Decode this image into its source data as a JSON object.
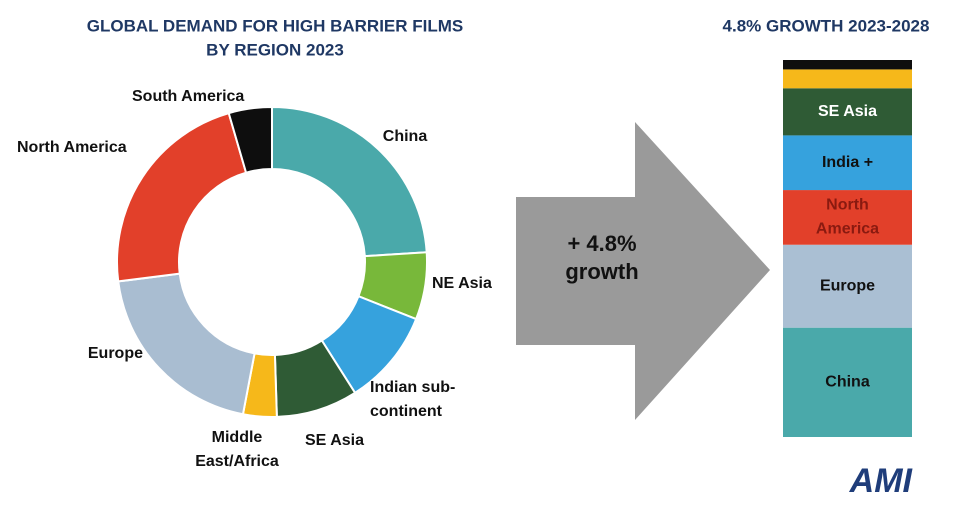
{
  "chart_data": [
    {
      "type": "pie",
      "hole": true,
      "title": [
        "GLOBAL DEMAND FOR HIGH BARRIER FILMS",
        "BY REGION 2023"
      ],
      "categories": [
        [
          "China"
        ],
        [
          "NE Asia"
        ],
        [
          "Indian sub-",
          "continent"
        ],
        [
          "SE Asia"
        ],
        [
          "Middle",
          "East/Africa"
        ],
        [
          "Europe"
        ],
        [
          "North America"
        ],
        [
          "South America"
        ]
      ],
      "values": [
        24,
        7,
        10,
        8.5,
        3.5,
        20,
        22.5,
        4.5
      ],
      "colors": [
        "#4aa9aa",
        "#78b83a",
        "#36a2dd",
        "#2f5b35",
        "#f6b81a",
        "#a9bdd1",
        "#e2402a",
        "#0e0e0e"
      ]
    },
    {
      "type": "stacked_bar",
      "title": [
        "4.8% GROWTH 2023-2028"
      ],
      "series": [
        {
          "name": [
            "China"
          ],
          "color": "#4aa9aa",
          "values": [
            29
          ]
        },
        {
          "name": [
            "Europe"
          ],
          "color": "#aabfd3",
          "values": [
            22
          ]
        },
        {
          "name": [
            "North",
            "America"
          ],
          "color": "#e2402a",
          "values": [
            14.5
          ]
        },
        {
          "name": [
            "India +"
          ],
          "color": "#36a2dd",
          "values": [
            14.5
          ]
        },
        {
          "name": [
            "SE Asia"
          ],
          "color": "#2f5b35",
          "values": [
            12.5
          ]
        },
        {
          "name": null,
          "color": "#f6b81a",
          "values": [
            5
          ]
        },
        {
          "name": null,
          "color": "#0e0e0e",
          "values": [
            2.5
          ]
        }
      ]
    }
  ],
  "arrow": {
    "label": [
      "+ 4.8%",
      "growth"
    ]
  },
  "logo": "AMI"
}
